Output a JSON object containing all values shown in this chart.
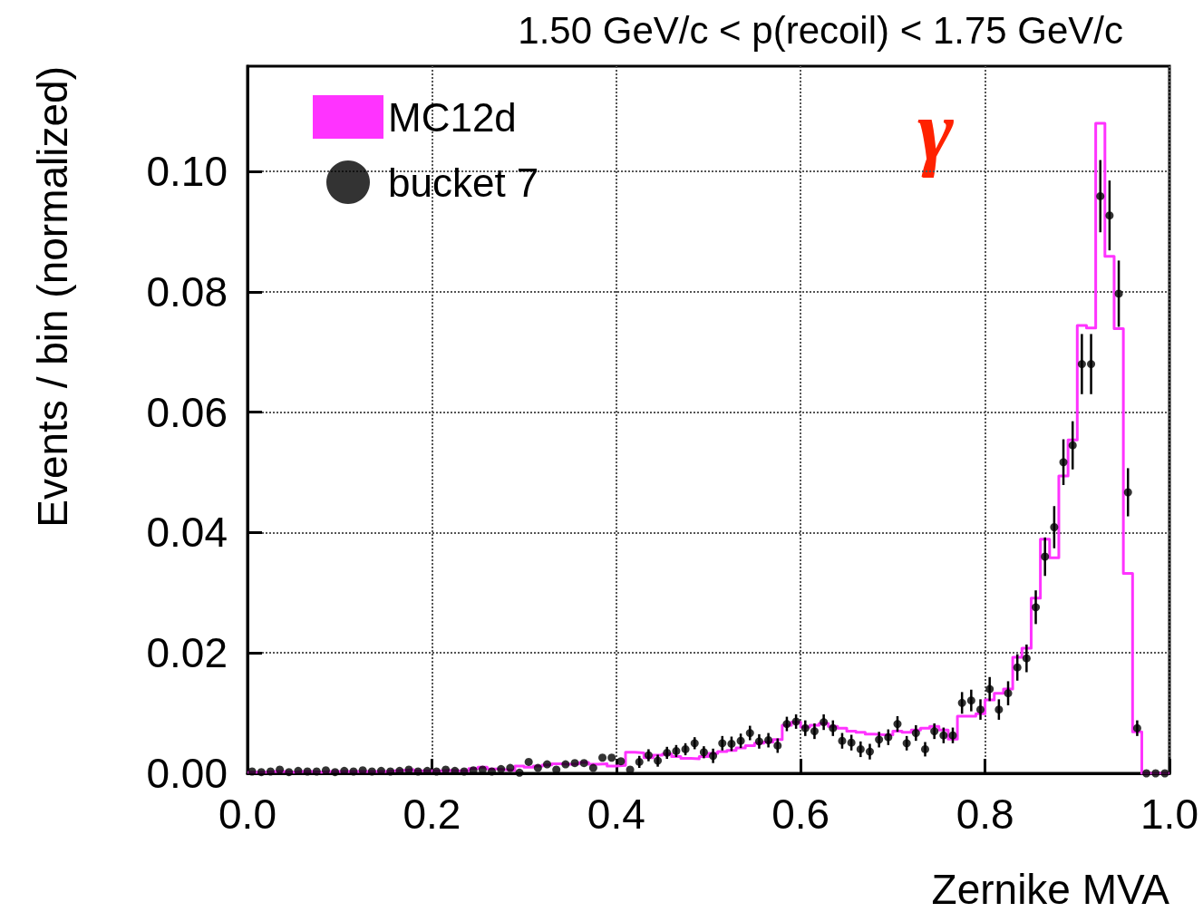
{
  "chart_data": {
    "type": "histogram",
    "title": "1.50 GeV/c < p(recoil) < 1.75 GeV/c",
    "xlabel": "Zernike MVA",
    "ylabel": "Events / bin (normalized)",
    "annotations": [
      "γ"
    ],
    "bins": [
      0,
      0.01,
      0.02,
      0.03,
      0.04,
      0.05,
      0.06,
      0.07,
      0.08,
      0.09,
      0.1,
      0.11,
      0.12,
      0.13,
      0.14,
      0.15,
      0.16,
      0.17,
      0.18,
      0.19,
      0.2,
      0.21,
      0.22,
      0.23,
      0.24,
      0.25,
      0.26,
      0.27,
      0.28,
      0.29,
      0.3,
      0.31,
      0.32,
      0.33,
      0.34,
      0.35,
      0.36,
      0.37,
      0.38,
      0.39,
      0.4,
      0.41,
      0.42,
      0.43,
      0.44,
      0.45,
      0.46,
      0.47,
      0.48,
      0.49,
      0.5,
      0.51,
      0.52,
      0.53,
      0.54,
      0.55,
      0.56,
      0.57,
      0.58,
      0.59,
      0.6,
      0.61,
      0.62,
      0.63,
      0.64,
      0.65,
      0.66,
      0.67,
      0.68,
      0.69,
      0.7,
      0.71,
      0.72,
      0.73,
      0.74,
      0.75,
      0.76,
      0.77,
      0.78,
      0.79,
      0.8,
      0.81,
      0.82,
      0.83,
      0.84,
      0.85,
      0.86,
      0.87,
      0.88,
      0.89,
      0.9,
      0.91,
      0.92,
      0.93,
      0.94,
      0.95,
      0.96,
      0.97,
      0.98,
      0.99,
      1
    ],
    "series": [
      {
        "name": "MC12d",
        "color": "#ff33ff",
        "values": [
          0.0002,
          0.0002,
          0.0003,
          0.0003,
          0.0002,
          0.0003,
          0.0003,
          0.0002,
          0.0003,
          0.0003,
          0.0003,
          0.0003,
          0.0003,
          0.0003,
          0.0003,
          0.0004,
          0.0005,
          0.0006,
          0.0004,
          0.0004,
          0.0004,
          0.0005,
          0.0004,
          0.0004,
          0.0008,
          0.001,
          0.0007,
          0.0006,
          0.0005,
          0.0012,
          0.001,
          0.0012,
          0.0014,
          0.0016,
          0.0015,
          0.0016,
          0.0018,
          0.0015,
          0.0016,
          0.0012,
          0.0013,
          0.0035,
          0.0034,
          0.0026,
          0.003,
          0.0032,
          0.0028,
          0.0025,
          0.0024,
          0.0028,
          0.0033,
          0.0036,
          0.0038,
          0.0042,
          0.0046,
          0.005,
          0.0052,
          0.0056,
          0.008,
          0.0085,
          0.0077,
          0.008,
          0.0083,
          0.0078,
          0.0075,
          0.007,
          0.0068,
          0.0065,
          0.0064,
          0.0064,
          0.007,
          0.0068,
          0.0072,
          0.0075,
          0.0078,
          0.0072,
          0.0057,
          0.0095,
          0.0095,
          0.0099,
          0.0122,
          0.0133,
          0.014,
          0.0193,
          0.0208,
          0.0291,
          0.0389,
          0.0358,
          0.0494,
          0.0554,
          0.0744,
          0.074,
          0.108,
          0.0859,
          0.0739,
          0.0332,
          0.0069,
          0,
          0,
          0
        ]
      },
      {
        "name": "bucket 7",
        "type": "scatter",
        "color": "#000000",
        "marker": "circle",
        "x": [
          0.005,
          0.015,
          0.025,
          0.035,
          0.045,
          0.055,
          0.065,
          0.075,
          0.085,
          0.095,
          0.105,
          0.115,
          0.125,
          0.135,
          0.145,
          0.155,
          0.165,
          0.175,
          0.185,
          0.195,
          0.205,
          0.215,
          0.225,
          0.235,
          0.245,
          0.255,
          0.265,
          0.275,
          0.285,
          0.295,
          0.305,
          0.315,
          0.325,
          0.335,
          0.345,
          0.355,
          0.365,
          0.375,
          0.385,
          0.395,
          0.405,
          0.415,
          0.425,
          0.435,
          0.445,
          0.455,
          0.465,
          0.475,
          0.485,
          0.495,
          0.505,
          0.515,
          0.525,
          0.535,
          0.545,
          0.555,
          0.565,
          0.575,
          0.585,
          0.595,
          0.605,
          0.615,
          0.625,
          0.635,
          0.645,
          0.655,
          0.665,
          0.675,
          0.685,
          0.695,
          0.705,
          0.715,
          0.725,
          0.735,
          0.745,
          0.755,
          0.765,
          0.775,
          0.785,
          0.795,
          0.805,
          0.815,
          0.825,
          0.835,
          0.845,
          0.855,
          0.865,
          0.875,
          0.885,
          0.895,
          0.905,
          0.915,
          0.925,
          0.935,
          0.945,
          0.955,
          0.965,
          0.975,
          0.985,
          0.995
        ],
        "values": [
          0.0003,
          0.0002,
          0.0003,
          0.0006,
          0.0002,
          0.0004,
          0.0003,
          0.0003,
          0.0005,
          0.0002,
          0.0004,
          0.0003,
          0.0005,
          0.0003,
          0.0004,
          0.0003,
          0.0004,
          0.0006,
          0.0003,
          0.0004,
          0.0003,
          0.0006,
          0.0004,
          0.0003,
          0.0005,
          0.0006,
          0.0003,
          0.0007,
          0.0009,
          0.0001,
          0.0019,
          0.0009,
          0.0015,
          0.0006,
          0.0015,
          0.0017,
          0.0017,
          0.0009,
          0.0026,
          0.0026,
          0.002,
          0.0006,
          0.0019,
          0.003,
          0.0021,
          0.0034,
          0.0037,
          0.004,
          0.005,
          0.0035,
          0.0029,
          0.005,
          0.0049,
          0.0054,
          0.0067,
          0.0053,
          0.0055,
          0.0046,
          0.0082,
          0.0086,
          0.0075,
          0.007,
          0.0085,
          0.0075,
          0.0054,
          0.0051,
          0.004,
          0.0036,
          0.0056,
          0.006,
          0.0082,
          0.005,
          0.0067,
          0.004,
          0.007,
          0.0063,
          0.0063,
          0.0117,
          0.0121,
          0.0106,
          0.014,
          0.0106,
          0.0133,
          0.0176,
          0.0191,
          0.0276,
          0.036,
          0.0409,
          0.0517,
          0.0545,
          0.068,
          0.068,
          0.0959,
          0.0927,
          0.0797,
          0.0467,
          0.0075,
          0,
          0,
          0
        ],
        "errors": [
          null,
          null,
          null,
          null,
          null,
          null,
          null,
          null,
          null,
          null,
          null,
          null,
          null,
          null,
          null,
          null,
          null,
          null,
          null,
          null,
          null,
          null,
          null,
          null,
          null,
          null,
          null,
          null,
          null,
          null,
          null,
          null,
          null,
          null,
          null,
          null,
          null,
          null,
          null,
          null,
          null,
          null,
          0.001,
          0.001,
          0.001,
          0.001,
          0.001,
          0.001,
          0.001,
          0.001,
          0.0012,
          0.0012,
          0.0012,
          0.0012,
          0.0012,
          0.0012,
          0.0012,
          0.0012,
          0.0012,
          0.0012,
          0.0013,
          0.0013,
          0.0013,
          0.0013,
          0.0013,
          0.0013,
          0.0013,
          0.0013,
          0.0013,
          0.0013,
          0.0013,
          0.0012,
          0.0013,
          0.0012,
          0.0013,
          0.0013,
          0.0013,
          0.0018,
          0.0018,
          0.0017,
          0.002,
          0.0017,
          0.002,
          0.0022,
          0.0023,
          0.0028,
          0.0032,
          0.0035,
          0.0038,
          0.004,
          0.005,
          0.005,
          0.006,
          0.0058,
          0.0055,
          0.004,
          0.0013,
          null,
          null,
          null
        ]
      }
    ],
    "xlim": [
      0,
      1
    ],
    "xticks": [
      {
        "value": 0,
        "label": "0.0"
      },
      0.2,
      0.4,
      0.6,
      0.8,
      {
        "value": 1,
        "label": "1.0"
      }
    ],
    "ylim": [
      0,
      0.1175
    ],
    "yticks": [
      {
        "value": 0,
        "label": "0.00"
      },
      {
        "value": 0.02,
        "label": "0.02"
      },
      {
        "value": 0.04,
        "label": "0.04"
      },
      {
        "value": 0.06,
        "label": "0.06"
      },
      {
        "value": 0.08,
        "label": "0.08"
      },
      {
        "value": 0.1,
        "label": "0.10"
      }
    ],
    "grid": true,
    "legend": "top left"
  }
}
